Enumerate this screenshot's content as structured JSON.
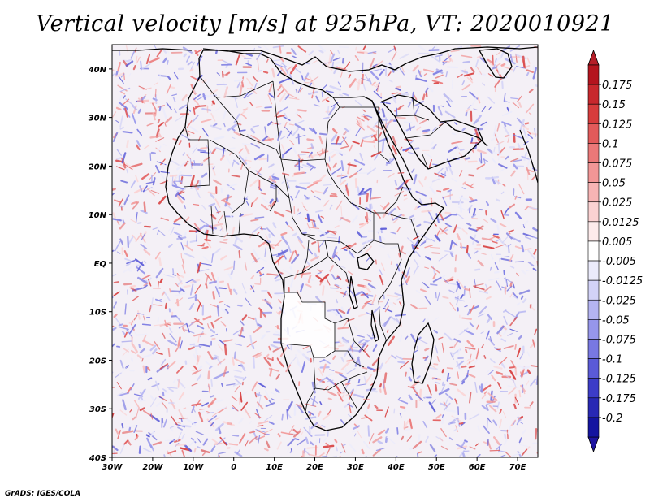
{
  "title": "Vertical velocity [m/s] at 925hPa, VT: 2020010921",
  "credit": "GrADS: IGES/COLA",
  "map": {
    "variable": "Vertical velocity",
    "units": "m/s",
    "level": "925hPa",
    "valid_time": "2020010921",
    "lon_range": [
      -30,
      75
    ],
    "lat_range": [
      -40,
      45
    ],
    "x_ticks": [
      "30W",
      "20W",
      "10W",
      "0",
      "10E",
      "20E",
      "30E",
      "40E",
      "50E",
      "60E",
      "70E"
    ],
    "x_tick_values": [
      -30,
      -20,
      -10,
      0,
      10,
      20,
      30,
      40,
      50,
      60,
      70
    ],
    "y_ticks": [
      "40N",
      "30N",
      "20N",
      "10N",
      "EQ",
      "10S",
      "20S",
      "30S",
      "40S"
    ],
    "y_tick_values": [
      40,
      30,
      20,
      10,
      0,
      -10,
      -20,
      -30,
      -40
    ]
  },
  "colorbar": {
    "levels": [
      "0.175",
      "0.15",
      "0.125",
      "0.1",
      "0.075",
      "0.05",
      "0.025",
      "0.0125",
      "0.005",
      "-0.005",
      "-0.0125",
      "-0.025",
      "-0.05",
      "-0.075",
      "-0.1",
      "-0.125",
      "-0.175",
      "-0.2"
    ],
    "colors": [
      "#b4141e",
      "#c8282d",
      "#d73c3c",
      "#e25a5a",
      "#eb7878",
      "#f29696",
      "#f7b4b4",
      "#fbd2d2",
      "#fdebeb",
      "#ffffff",
      "#ebebfb",
      "#d2d2f7",
      "#b4b4f2",
      "#9696eb",
      "#7878e2",
      "#5a5ad7",
      "#3c3cc8",
      "#2828b4",
      "#1414a0"
    ],
    "max_arrow_color": "#b41e28",
    "min_arrow_color": "#1e14a0"
  }
}
